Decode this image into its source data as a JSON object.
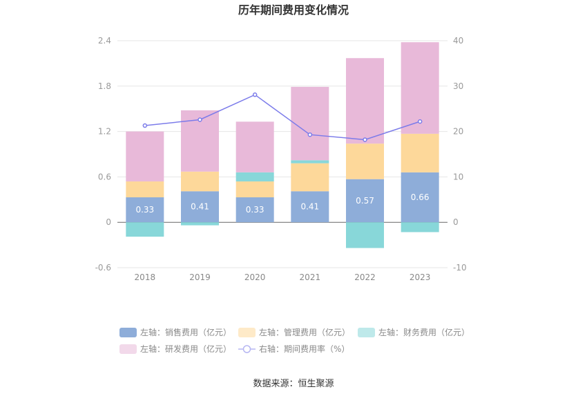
{
  "chart_data": {
    "type": "bar",
    "title": "历年期间费用变化情况",
    "categories": [
      "2018",
      "2019",
      "2020",
      "2021",
      "2022",
      "2023"
    ],
    "series": [
      {
        "name": "左轴：销售费用（亿元）",
        "axis": "left",
        "color": "#8eadd9",
        "values": [
          0.33,
          0.41,
          0.33,
          0.41,
          0.57,
          0.66
        ]
      },
      {
        "name": "左轴：管理费用（亿元）",
        "axis": "left",
        "color": "#fdd89a",
        "values": [
          0.21,
          0.26,
          0.21,
          0.37,
          0.47,
          0.51
        ]
      },
      {
        "name": "左轴：财务费用（亿元）",
        "axis": "left",
        "color": "#88d7d9",
        "values": [
          -0.19,
          -0.04,
          0.12,
          0.04,
          -0.34,
          -0.13
        ]
      },
      {
        "name": "左轴：研发费用（亿元）",
        "axis": "left",
        "color": "#e8b9d9",
        "values": [
          0.66,
          0.81,
          0.67,
          0.97,
          1.13,
          1.21
        ]
      },
      {
        "name": "右轴：期间费用率（%）",
        "axis": "right",
        "type": "line",
        "color": "#7b7bea",
        "values": [
          21.3,
          22.6,
          28.1,
          19.3,
          18.2,
          22.2
        ]
      }
    ],
    "left_axis": {
      "ylim": [
        -0.6,
        2.4
      ],
      "ticks": [
        "-0.6",
        "0",
        "0.6",
        "1.2",
        "1.8",
        "2.4"
      ]
    },
    "right_axis": {
      "ylim": [
        -10,
        40
      ],
      "ticks": [
        "-10",
        "0",
        "10",
        "20",
        "30",
        "40"
      ]
    },
    "data_labels": [
      "0.33",
      "0.41",
      "0.33",
      "0.41",
      "0.57",
      "0.66"
    ],
    "grid": true
  },
  "source": "数据来源：恒生聚源"
}
